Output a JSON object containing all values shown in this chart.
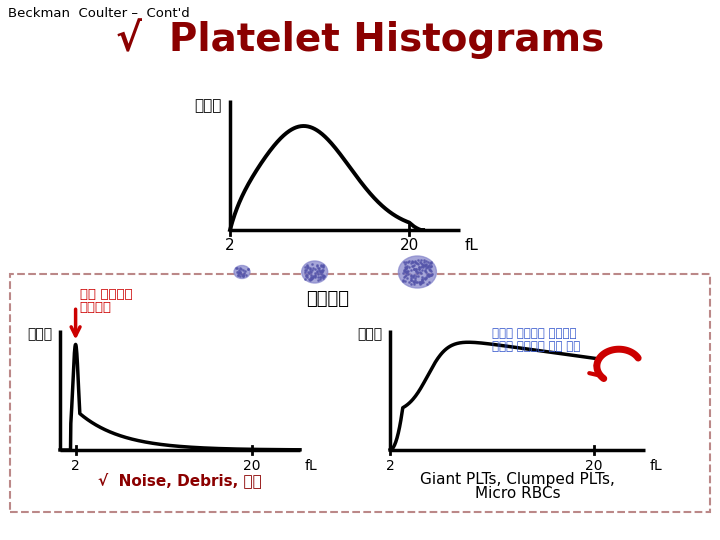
{
  "bg_color": "#ffffff",
  "top_left_text": "Beckman  Coulter –  Cont'd",
  "main_title": "√  Platelet Histograms",
  "main_title_color": "#8B0000",
  "ylabel_top": "해구수",
  "xlabel_2": "2",
  "xlabel_20": "20",
  "xlabel_unit": "fL",
  "top_caption": "정상분포",
  "left_arrow_line1": "작은 입자들의",
  "left_arrow_line2": "간섭현상",
  "left_caption": "√  Noise, Debris, 세균",
  "left_caption_color": "#8B0000",
  "right_note_line1": "커다란 혐소판의 간섭으로",
  "right_note_line2": "공선이 기준선에 당지 못함",
  "right_note_color": "#3355CC",
  "right_cap1": "Giant PLTs, Clumped PLTs,",
  "right_cap2": "Micro RBCs",
  "platelet_color": "#8888cc",
  "arrow_color": "#cc0000",
  "box_edge_color": "#bb8888"
}
